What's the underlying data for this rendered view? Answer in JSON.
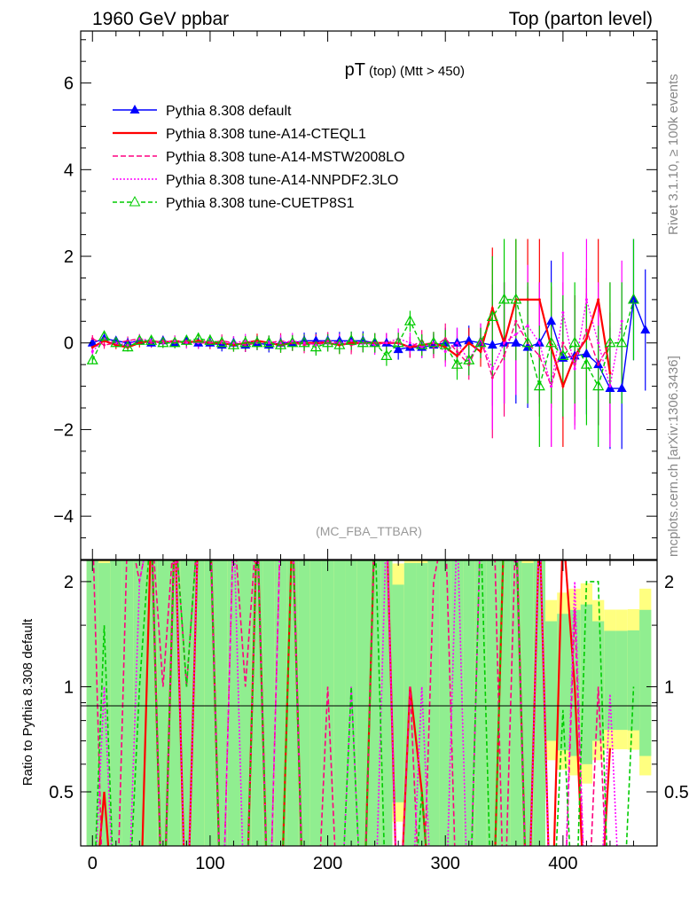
{
  "header": {
    "left": "1960 GeV ppbar",
    "right": "Top (parton level)"
  },
  "side_labels": {
    "rivet": "Rivet 3.1.10, ≥ 100k events",
    "mcplots": "mcplots.cern.ch [arXiv:1306.3436]"
  },
  "colors": {
    "default": "#0000ff",
    "cteql1": "#ff0000",
    "mstw": "#ff0080",
    "nnpdf": "#ff00ff",
    "cuetp8s1": "#00cc00",
    "band_green": "#90ee90",
    "band_yellow": "#ffff80"
  },
  "chart_data": {
    "type": "line",
    "title_main": "pT",
    "title_sub": "(top) (Mtt > 450)",
    "watermark": "(MC_FBA_TTBAR)",
    "xlabel": "",
    "ylabel_ratio": "Ratio to Pythia 8.308 default",
    "xlim": [
      -10,
      480
    ],
    "ylim": [
      -5.0,
      7.2
    ],
    "ratio_ylim": [
      0.35,
      2.3
    ],
    "x_ticks": [
      0,
      100,
      200,
      300,
      400
    ],
    "y_ticks": [
      -4,
      -2,
      0,
      2,
      4,
      6
    ],
    "ratio_ticks": [
      0.5,
      1,
      2
    ],
    "legend_position": "top-left",
    "series": [
      {
        "name": "Pythia 8.308 default",
        "style": "solid-triangle",
        "x": [
          0,
          10,
          20,
          30,
          40,
          50,
          60,
          70,
          80,
          90,
          100,
          110,
          120,
          130,
          140,
          150,
          160,
          170,
          180,
          190,
          200,
          210,
          220,
          230,
          240,
          250,
          260,
          270,
          280,
          290,
          300,
          310,
          320,
          330,
          340,
          350,
          360,
          370,
          380,
          390,
          400,
          410,
          420,
          430,
          440,
          450,
          460,
          470
        ],
        "y": [
          0.0,
          0.1,
          0.05,
          0.0,
          0.05,
          0.0,
          0.05,
          0.0,
          0.05,
          0.0,
          0.0,
          -0.05,
          0.0,
          -0.05,
          0.0,
          -0.05,
          0.0,
          0.0,
          0.05,
          0.05,
          0.05,
          0.05,
          0.05,
          0.05,
          0.0,
          0.0,
          -0.15,
          -0.1,
          -0.1,
          -0.05,
          0.0,
          0.0,
          0.05,
          0.0,
          -0.05,
          0.0,
          0.0,
          -0.1,
          0.0,
          0.5,
          -0.35,
          -0.3,
          -0.25,
          -0.5,
          -1.05,
          -1.05,
          1.0,
          0.3
        ]
      },
      {
        "name": "Pythia 8.308 tune-A14-CTEQL1",
        "style": "solid",
        "x": [
          0,
          10,
          20,
          30,
          40,
          50,
          60,
          70,
          80,
          90,
          100,
          110,
          120,
          130,
          140,
          150,
          160,
          170,
          180,
          190,
          200,
          210,
          220,
          230,
          240,
          250,
          260,
          270,
          280,
          290,
          300,
          310,
          320,
          330,
          340,
          350,
          360,
          370,
          380,
          390,
          400,
          410,
          420,
          430,
          440
        ],
        "y": [
          -0.1,
          0.05,
          -0.05,
          -0.1,
          0.0,
          0.05,
          0.0,
          0.05,
          0.0,
          0.05,
          0.0,
          0.0,
          -0.05,
          0.0,
          0.05,
          0.0,
          -0.05,
          0.0,
          0.0,
          0.0,
          0.0,
          -0.05,
          0.0,
          0.0,
          0.0,
          0.0,
          0.0,
          -0.1,
          -0.05,
          0.0,
          -0.1,
          -0.3,
          0.0,
          -0.2,
          0.8,
          0.0,
          1.0,
          1.0,
          1.0,
          -0.1,
          -1.0,
          -0.3,
          0.1,
          1.0,
          -0.7
        ]
      },
      {
        "name": "Pythia 8.308 tune-A14-MSTW2008LO",
        "style": "dashed",
        "x": [
          0,
          10,
          20,
          30,
          40,
          50,
          60,
          70,
          80,
          90,
          100,
          110,
          120,
          130,
          140,
          150,
          160,
          170,
          180,
          190,
          200,
          210,
          220,
          230,
          240,
          250,
          260,
          270,
          280,
          290,
          300,
          310,
          320,
          330,
          340,
          350,
          360,
          370,
          380,
          390,
          400,
          410,
          420,
          430,
          440
        ],
        "y": [
          0.1,
          -0.05,
          0.0,
          0.05,
          0.1,
          0.0,
          0.05,
          0.0,
          0.05,
          0.0,
          0.0,
          0.05,
          0.0,
          -0.05,
          0.0,
          0.0,
          0.05,
          0.0,
          -0.05,
          0.0,
          0.05,
          0.0,
          -0.05,
          0.0,
          0.0,
          0.0,
          0.0,
          -0.1,
          0.05,
          -0.1,
          0.1,
          -0.2,
          -0.5,
          0.1,
          -0.8,
          -0.3,
          0.5,
          0.0,
          -0.3,
          -1.0,
          0.0,
          -0.5,
          0.3,
          -0.5,
          0.0
        ]
      },
      {
        "name": "Pythia 8.308 tune-A14-NNPDF2.3LO",
        "style": "dotted",
        "x": [
          0,
          10,
          20,
          30,
          40,
          50,
          60,
          70,
          80,
          90,
          100,
          110,
          120,
          130,
          140,
          150,
          160,
          170,
          180,
          190,
          200,
          210,
          220,
          230,
          240,
          250,
          260,
          270,
          280,
          290,
          300,
          310,
          320,
          330,
          340,
          350,
          360,
          370,
          380,
          390,
          400,
          410,
          420,
          430,
          440,
          450
        ],
        "y": [
          -0.2,
          0.1,
          0.0,
          -0.05,
          0.1,
          0.05,
          0.0,
          0.05,
          0.0,
          0.0,
          0.05,
          0.0,
          0.0,
          0.05,
          0.0,
          0.0,
          0.0,
          0.05,
          0.0,
          -0.05,
          0.0,
          0.0,
          0.05,
          0.0,
          -0.05,
          0.0,
          0.1,
          0.0,
          -0.1,
          0.0,
          -0.2,
          0.0,
          -0.4,
          0.1,
          -0.6,
          0.0,
          0.2,
          0.4,
          0.0,
          -1.0,
          0.7,
          -0.6,
          1.0,
          0.0,
          -1.0,
          0.5
        ]
      },
      {
        "name": "Pythia 8.308 tune-CUETP8S1",
        "style": "dashed-open-triangle",
        "x": [
          0,
          10,
          20,
          30,
          40,
          50,
          60,
          70,
          80,
          90,
          100,
          110,
          120,
          130,
          140,
          150,
          160,
          170,
          180,
          190,
          200,
          210,
          220,
          230,
          240,
          250,
          260,
          270,
          280,
          290,
          300,
          310,
          320,
          330,
          340,
          350,
          360,
          370,
          380,
          390,
          400,
          410,
          420,
          430,
          440,
          450,
          460
        ],
        "y": [
          -0.4,
          0.15,
          0.0,
          -0.1,
          0.05,
          0.05,
          0.0,
          0.0,
          0.05,
          0.1,
          0.05,
          0.0,
          -0.05,
          0.0,
          0.0,
          0.0,
          -0.05,
          0.0,
          0.0,
          -0.1,
          0.0,
          -0.05,
          0.05,
          0.0,
          0.0,
          -0.3,
          0.0,
          0.5,
          -0.05,
          0.0,
          -0.05,
          -0.5,
          -0.4,
          0.0,
          0.6,
          1.0,
          1.0,
          0.0,
          -1.0,
          0.0,
          -0.3,
          0.0,
          -0.5,
          -1.0,
          0.0,
          0.0,
          1.0
        ]
      }
    ]
  }
}
